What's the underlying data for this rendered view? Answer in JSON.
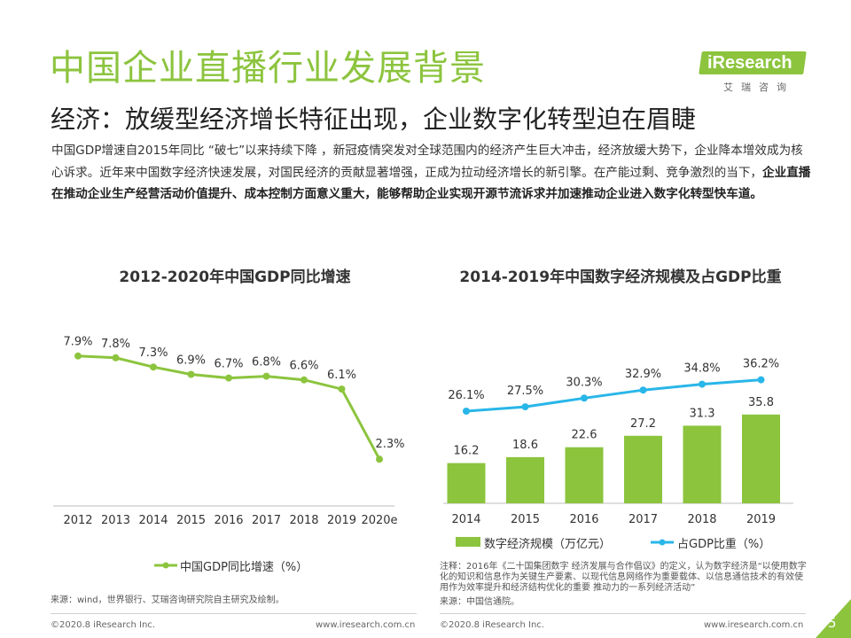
{
  "header": {
    "title": "中国企业直播行业发展背景",
    "subtitle": "经济：放缓型经济增长特征出现，企业数字化转型迫在眉睫",
    "brand": "iResearch",
    "brand_sub": "艾瑞咨询"
  },
  "intro": {
    "part1": "中国GDP增速自2015年同比 “破七”以来持续下降 ，新冠疫情突发对全球范围内的经济产生巨大冲击，经济放缓大势下，企业降本增效成为核心诉求。近年来中国数字经济快速发展，对国民经济的贡献显著增强，正成为拉动经济增长的新引擎。在产能过剩、竞争激烈的当下，",
    "part2": "企业直播在推动企业生产经营活动价值提升、成本控制方面意义重大，能够帮助企业实现开源节流诉求并加速推动企业进入数字化转型快车道。"
  },
  "colors": {
    "accent": "#8cc43e",
    "line2": "#29b6e8"
  },
  "chart_data": [
    {
      "type": "line",
      "title": "2012-2020年中国GDP同比增速",
      "categories": [
        "2012",
        "2013",
        "2014",
        "2015",
        "2016",
        "2017",
        "2018",
        "2019",
        "2020e"
      ],
      "series": [
        {
          "name": "中国GDP同比增速（%）",
          "values": [
            7.9,
            7.8,
            7.3,
            6.9,
            6.7,
            6.8,
            6.6,
            6.1,
            2.3
          ]
        }
      ],
      "data_labels": [
        "7.9%",
        "7.8%",
        "7.3%",
        "6.9%",
        "6.7%",
        "6.8%",
        "6.6%",
        "6.1%",
        "2.3%"
      ],
      "legend": "bottom",
      "ylim": [
        0,
        10
      ],
      "grid": false
    },
    {
      "type": "bar",
      "title": "2014-2019年中国数字经济规模及占GDP比重",
      "categories": [
        "2014",
        "2015",
        "2016",
        "2017",
        "2018",
        "2019"
      ],
      "series": [
        {
          "name": "数字经济规模（万亿元）",
          "type": "bar",
          "values": [
            16.2,
            18.6,
            22.6,
            27.2,
            31.3,
            35.8
          ]
        },
        {
          "name": "占GDP比重（%）",
          "type": "line",
          "values": [
            26.1,
            27.5,
            30.3,
            32.9,
            34.8,
            36.2
          ]
        }
      ],
      "bar_labels": [
        "16.2",
        "18.6",
        "22.6",
        "27.2",
        "31.3",
        "35.8"
      ],
      "line_labels": [
        "26.1%",
        "27.5%",
        "30.3%",
        "32.9%",
        "34.8%",
        "36.2%"
      ],
      "legend": "bottom",
      "grid": false
    }
  ],
  "notes": {
    "left_source": "来源：wind，世界银行、艾瑞咨询研究院自主研究及绘制。",
    "right_note": "注释：2016年《二十国集团数字 经济发展与合作倡议》的定义，认为数字经济是“以使用数字化的知识和信息作为关键生产要素、以现代信息网络作为重要载体、以信息通信技术的有效使 用作为效率提升和经济结构优化的重要 推动力的一系列经济活动”",
    "right_source": "来源：中国信通院。"
  },
  "footer": {
    "left_copy": "©2020.8 iResearch Inc.",
    "left_url": "www.iresearch.com.cn",
    "right_copy": "©2020.8 iResearch Inc.",
    "right_url": "www.iresearch.com.cn",
    "page": "5"
  }
}
